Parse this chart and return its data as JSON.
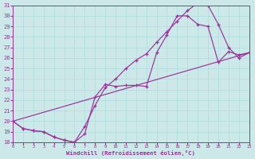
{
  "xlabel": "Windchill (Refroidissement éolien,°C)",
  "bg_color": "#cce8e8",
  "line_color": "#993399",
  "grid_color": "#aadddd",
  "xlim": [
    0,
    23
  ],
  "ylim": [
    18,
    31
  ],
  "xticks": [
    0,
    1,
    2,
    3,
    4,
    5,
    6,
    7,
    8,
    9,
    10,
    11,
    12,
    13,
    14,
    15,
    16,
    17,
    18,
    19,
    20,
    21,
    22,
    23
  ],
  "yticks": [
    18,
    19,
    20,
    21,
    22,
    23,
    24,
    25,
    26,
    27,
    28,
    29,
    30,
    31
  ],
  "line1_x": [
    0,
    1,
    2,
    3,
    4,
    5,
    6,
    7,
    8,
    9,
    10,
    11,
    12,
    13,
    14,
    15,
    16,
    17,
    18,
    19,
    20,
    21,
    22,
    23
  ],
  "line1_y": [
    20.0,
    19.3,
    19.1,
    19.0,
    18.5,
    18.2,
    18.0,
    18.8,
    22.3,
    23.5,
    23.3,
    23.4,
    23.4,
    23.3,
    26.5,
    28.2,
    30.0,
    30.0,
    29.2,
    29.0,
    25.6,
    26.6,
    26.3,
    26.5
  ],
  "line2_x": [
    0,
    1,
    2,
    3,
    4,
    5,
    6,
    7,
    8,
    9,
    10,
    11,
    12,
    13,
    14,
    15,
    16,
    17,
    18,
    19,
    20,
    21,
    22,
    23
  ],
  "line2_y": [
    20.0,
    19.3,
    19.1,
    19.0,
    18.5,
    18.2,
    18.0,
    19.5,
    21.5,
    23.2,
    24.0,
    25.0,
    25.8,
    26.4,
    27.5,
    28.5,
    29.5,
    30.5,
    31.2,
    31.0,
    29.2,
    27.0,
    26.0,
    26.5
  ],
  "line3_x": [
    0,
    23
  ],
  "line3_y": [
    20.0,
    26.5
  ]
}
